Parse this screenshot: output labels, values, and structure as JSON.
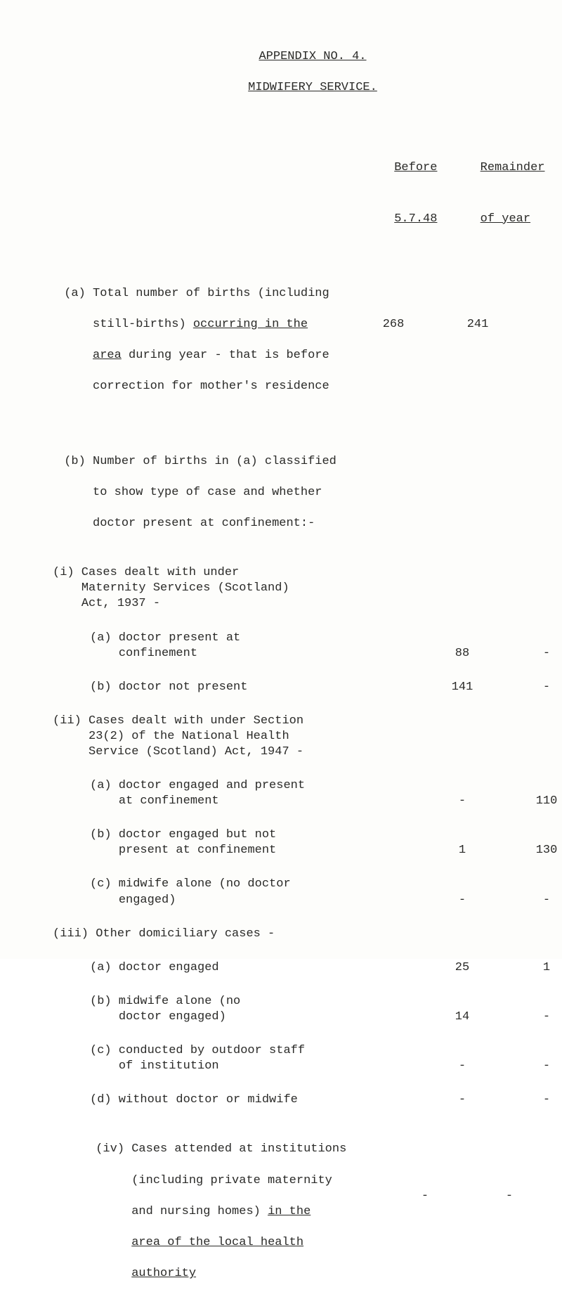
{
  "header": {
    "appendix": "APPENDIX NO. 4.",
    "title": "MIDWIFERY SERVICE."
  },
  "columns": {
    "before_label": "Before",
    "before_sub": "5.7.48",
    "remainder_label": "Remainder",
    "remainder_sub": "of year"
  },
  "rows": {
    "a_total": {
      "l1": "(a) Total number of births (including",
      "l2": "    still-births) ",
      "l2u": "occurring in the",
      "l3pre": "    ",
      "l3u": "area",
      "l3mid": " during year - that is before",
      "l4": "    correction for mother's residence",
      "before": "268",
      "remainder": "241"
    },
    "b_header": {
      "l1": "(b) Number of births in (a) classified",
      "l2": "    to show type of case and whether",
      "l3": "    doctor present at confinement:-"
    },
    "i_header": {
      "text": "(i) Cases dealt with under\n    Maternity Services (Scotland)\n    Act, 1937 -"
    },
    "i_a": {
      "text": "(a) doctor present at\n    confinement",
      "before": "88",
      "remainder": "-"
    },
    "i_b": {
      "text": "(b) doctor not present",
      "before": "141",
      "remainder": "-"
    },
    "ii_header": {
      "text": "(ii) Cases dealt with under Section\n     23(2) of the National Health\n     Service (Scotland) Act, 1947 -"
    },
    "ii_a": {
      "text": "(a) doctor engaged and present\n    at confinement",
      "before": "-",
      "remainder": "110"
    },
    "ii_b": {
      "text": "(b) doctor engaged but not\n    present at confinement",
      "before": "1",
      "remainder": "130"
    },
    "ii_c": {
      "text": "(c) midwife alone (no doctor\n    engaged)",
      "before": "-",
      "remainder": "-"
    },
    "iii_header": {
      "text": "(iii) Other domiciliary cases -"
    },
    "iii_a": {
      "text": "(a) doctor engaged",
      "before": "25",
      "remainder": "1"
    },
    "iii_b": {
      "text": "(b) midwife alone (no\n    doctor engaged)",
      "before": "14",
      "remainder": "-"
    },
    "iii_c": {
      "text": "(c) conducted by outdoor staff\n    of institution",
      "before": "-",
      "remainder": "-"
    },
    "iii_d": {
      "text": "(d) without doctor or midwife",
      "before": "-",
      "remainder": "-"
    },
    "iv": {
      "l1": "(iv) Cases attended at institutions",
      "l2": "     (including private maternity",
      "l3pre": "     and nursing homes) ",
      "l3u": "in the",
      "l4pre": "     ",
      "l4u": "area of the local health",
      "l5pre": "     ",
      "l5u": "authority",
      "before": "-",
      "remainder": "-"
    }
  }
}
